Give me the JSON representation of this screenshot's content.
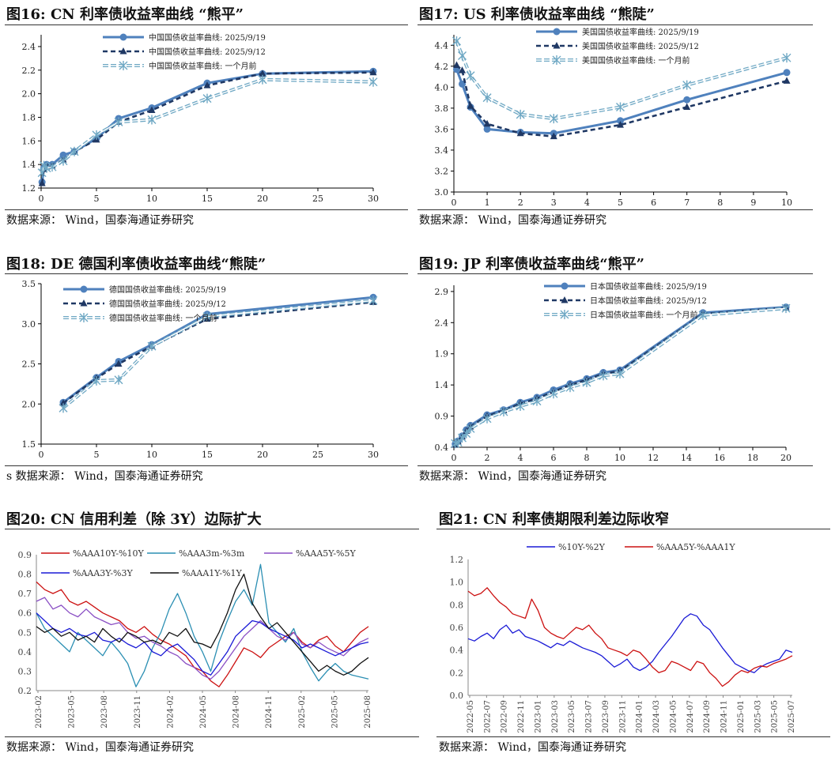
{
  "source_text": "数据来源：  Wind，国泰海通证券研究",
  "source_text_fig18": "s 数据来源：  Wind，国泰海通证券研究",
  "colors": {
    "solid": "#4f81bd",
    "dash": "#1f3864",
    "light": "#6fa8c4",
    "c20_red": "#cc1111",
    "c20_teal": "#2b8fb3",
    "c20_purple": "#8a4fc4",
    "c20_blue": "#1a1ad6",
    "c20_black": "#111111"
  },
  "chart_data": [
    {
      "id": "fig16",
      "type": "line",
      "title": "图16:  CN 利率债收益率曲线 “熊平”",
      "x": [
        0.083,
        0.25,
        0.5,
        1,
        2,
        3,
        5,
        7,
        10,
        15,
        20,
        30
      ],
      "xlim": [
        0,
        30
      ],
      "xticks": [
        0,
        5,
        10,
        15,
        20,
        25,
        30
      ],
      "ylim": [
        1.2,
        2.5
      ],
      "yticks": [
        "1.2",
        "1.4",
        "1.6",
        "1.8",
        "2.0",
        "2.2",
        "2.4"
      ],
      "legend": "top-left",
      "series": [
        {
          "name": "中国国债收益率曲线: 2025/9/19",
          "style": "solid",
          "values": [
            1.25,
            1.37,
            1.4,
            1.4,
            1.48,
            1.51,
            1.62,
            1.79,
            1.88,
            2.09,
            2.17,
            2.19
          ]
        },
        {
          "name": "中国国债收益率曲线: 2025/9/12",
          "style": "dash",
          "values": [
            1.24,
            1.36,
            1.39,
            1.39,
            1.44,
            1.51,
            1.61,
            1.76,
            1.86,
            2.07,
            2.17,
            2.18
          ]
        },
        {
          "name": "中国国债收益率曲线: 一个月前",
          "style": "double",
          "values": [
            1.33,
            1.39,
            1.37,
            1.38,
            1.43,
            1.51,
            1.65,
            1.76,
            1.78,
            1.96,
            2.12,
            2.1
          ]
        }
      ]
    },
    {
      "id": "fig17",
      "type": "line",
      "title": "图17:  US 利率债收益率曲线 “熊陡”",
      "x": [
        0.083,
        0.25,
        0.5,
        1,
        2,
        3,
        5,
        7,
        10
      ],
      "xlim": [
        0,
        10
      ],
      "xticks": [
        0,
        1,
        2,
        3,
        4,
        5,
        6,
        7,
        8,
        9,
        10
      ],
      "ylim": [
        3.0,
        4.5
      ],
      "yticks": [
        "3.0",
        "3.2",
        "3.4",
        "3.6",
        "3.8",
        "4.0",
        "4.2",
        "4.4"
      ],
      "legend": "top-right",
      "series": [
        {
          "name": "美国国债收益率曲线: 2025/9/19",
          "style": "solid",
          "values": [
            4.17,
            4.03,
            3.81,
            3.6,
            3.57,
            3.56,
            3.68,
            3.88,
            4.14
          ]
        },
        {
          "name": "美国国债收益率曲线: 2025/9/12",
          "style": "dash",
          "values": [
            4.21,
            4.16,
            3.82,
            3.65,
            3.56,
            3.53,
            3.64,
            3.81,
            4.06
          ]
        },
        {
          "name": "美国国债收益率曲线: 一个月前",
          "style": "double",
          "values": [
            4.44,
            4.3,
            4.11,
            3.9,
            3.74,
            3.7,
            3.81,
            4.02,
            4.28
          ]
        }
      ]
    },
    {
      "id": "fig18",
      "type": "line",
      "title": "图18:  DE 德国利率债收益率曲线“熊陡”",
      "x": [
        2,
        5,
        7,
        10,
        15,
        30
      ],
      "xlim": [
        0,
        30
      ],
      "xticks": [
        0,
        5,
        10,
        15,
        20,
        25,
        30
      ],
      "ylim": [
        1.5,
        3.5
      ],
      "yticks": [
        "1.5",
        "2.0",
        "2.5",
        "3.0",
        "3.5"
      ],
      "legend": "top-left",
      "series": [
        {
          "name": "德国国债收益率曲线: 2025/9/19",
          "style": "solid",
          "values": [
            2.02,
            2.33,
            2.53,
            2.74,
            3.12,
            3.33
          ]
        },
        {
          "name": "德国国债收益率曲线: 2025/9/12",
          "style": "dash",
          "values": [
            2.01,
            2.32,
            2.5,
            2.72,
            3.06,
            3.27
          ]
        },
        {
          "name": "德国国债收益率曲线: 一个月前",
          "style": "double",
          "values": [
            1.95,
            2.29,
            2.3,
            2.72,
            3.09,
            3.29
          ]
        }
      ]
    },
    {
      "id": "fig19",
      "type": "line",
      "title": "图19:  JP 利率债收益率曲线“熊平”",
      "x": [
        0.083,
        0.25,
        0.5,
        0.75,
        1,
        2,
        3,
        4,
        5,
        6,
        7,
        8,
        9,
        10,
        15,
        20
      ],
      "xlim": [
        0,
        20
      ],
      "xticks": [
        0,
        2,
        4,
        6,
        8,
        10,
        12,
        14,
        16,
        18,
        20
      ],
      "ylim": [
        0.4,
        3.0
      ],
      "yticks": [
        "0.4",
        "0.9",
        "1.4",
        "1.9",
        "2.4",
        "2.9"
      ],
      "legend": "top-center",
      "series": [
        {
          "name": "日本国债收益率曲线: 2025/9/19",
          "style": "solid",
          "values": [
            0.45,
            0.5,
            0.58,
            0.68,
            0.75,
            0.92,
            1.0,
            1.12,
            1.2,
            1.32,
            1.42,
            1.5,
            1.6,
            1.64,
            2.56,
            2.65
          ]
        },
        {
          "name": "日本国债收益率曲线: 2025/9/12",
          "style": "dash",
          "values": [
            0.44,
            0.49,
            0.57,
            0.66,
            0.73,
            0.9,
            0.99,
            1.1,
            1.18,
            1.29,
            1.4,
            1.48,
            1.58,
            1.62,
            2.54,
            2.64
          ]
        },
        {
          "name": "日本国债收益率曲线: 一个月前",
          "style": "double",
          "values": [
            0.46,
            0.48,
            0.55,
            0.62,
            0.7,
            0.86,
            0.97,
            1.06,
            1.14,
            1.26,
            1.36,
            1.44,
            1.55,
            1.58,
            2.52,
            2.63
          ]
        }
      ]
    },
    {
      "id": "fig20",
      "type": "line",
      "title": "图20:  CN 信用利差（除 3Y）边际扩大",
      "ylim": [
        0.2,
        0.9
      ],
      "yticks": [
        "0.2",
        "0.3",
        "0.4",
        "0.5",
        "0.6",
        "0.7",
        "0.8",
        "0.9"
      ],
      "xticks": [
        "2023-02",
        "2023-05",
        "2023-08",
        "2023-11",
        "2024-02",
        "2024-05",
        "2024-08",
        "2024-11",
        "2025-02",
        "2025-05",
        "2025-08"
      ],
      "legend": "top",
      "series": [
        {
          "name": "%AAA10Y-%10Y",
          "color": "#cc1111",
          "values": [
            0.76,
            0.72,
            0.7,
            0.72,
            0.66,
            0.64,
            0.66,
            0.63,
            0.6,
            0.58,
            0.56,
            0.52,
            0.5,
            0.53,
            0.49,
            0.46,
            0.44,
            0.41,
            0.38,
            0.32,
            0.3,
            0.25,
            0.22,
            0.28,
            0.35,
            0.42,
            0.4,
            0.37,
            0.42,
            0.45,
            0.48,
            0.5,
            0.45,
            0.42,
            0.46,
            0.48,
            0.43,
            0.4,
            0.45,
            0.5,
            0.53
          ]
        },
        {
          "name": "%AAA3m-%3m",
          "color": "#2b8fb3",
          "values": [
            0.6,
            0.52,
            0.48,
            0.44,
            0.4,
            0.5,
            0.46,
            0.42,
            0.38,
            0.45,
            0.4,
            0.34,
            0.22,
            0.3,
            0.42,
            0.5,
            0.62,
            0.7,
            0.6,
            0.48,
            0.4,
            0.3,
            0.45,
            0.56,
            0.66,
            0.72,
            0.64,
            0.85,
            0.55,
            0.5,
            0.45,
            0.52,
            0.4,
            0.32,
            0.25,
            0.3,
            0.34,
            0.3,
            0.28,
            0.27,
            0.26
          ]
        },
        {
          "name": "%AAA5Y-%5Y",
          "color": "#8a4fc4",
          "values": [
            0.66,
            0.68,
            0.62,
            0.64,
            0.6,
            0.58,
            0.62,
            0.58,
            0.56,
            0.54,
            0.55,
            0.5,
            0.47,
            0.48,
            0.45,
            0.43,
            0.4,
            0.38,
            0.34,
            0.32,
            0.28,
            0.26,
            0.3,
            0.36,
            0.42,
            0.48,
            0.52,
            0.56,
            0.52,
            0.48,
            0.46,
            0.5,
            0.44,
            0.42,
            0.45,
            0.42,
            0.4,
            0.38,
            0.42,
            0.45,
            0.47
          ]
        },
        {
          "name": "%AAA3Y-%3Y",
          "color": "#1a1ad6",
          "values": [
            0.6,
            0.56,
            0.52,
            0.5,
            0.52,
            0.49,
            0.48,
            0.5,
            0.46,
            0.45,
            0.47,
            0.44,
            0.42,
            0.45,
            0.4,
            0.38,
            0.42,
            0.44,
            0.4,
            0.36,
            0.3,
            0.28,
            0.34,
            0.4,
            0.48,
            0.52,
            0.56,
            0.55,
            0.52,
            0.5,
            0.48,
            0.46,
            0.42,
            0.44,
            0.42,
            0.4,
            0.38,
            0.4,
            0.42,
            0.44,
            0.45
          ]
        },
        {
          "name": "%AAA1Y-%1Y",
          "color": "#111111",
          "values": [
            0.53,
            0.5,
            0.52,
            0.48,
            0.5,
            0.46,
            0.48,
            0.45,
            0.52,
            0.48,
            0.45,
            0.5,
            0.48,
            0.45,
            0.46,
            0.44,
            0.5,
            0.48,
            0.52,
            0.45,
            0.44,
            0.42,
            0.5,
            0.6,
            0.72,
            0.8,
            0.65,
            0.58,
            0.52,
            0.55,
            0.5,
            0.45,
            0.4,
            0.35,
            0.3,
            0.33,
            0.3,
            0.28,
            0.3,
            0.34,
            0.37
          ]
        }
      ]
    },
    {
      "id": "fig21",
      "type": "line",
      "title": "图21:  CN 利率债期限利差边际收窄",
      "ylim": [
        0.0,
        1.2
      ],
      "yticks": [
        "0.0",
        "0.2",
        "0.4",
        "0.6",
        "0.8",
        "1.0",
        "1.2"
      ],
      "xticks": [
        "2022-05",
        "2022-07",
        "2022-09",
        "2022-11",
        "2023-01",
        "2023-03",
        "2023-05",
        "2023-07",
        "2023-09",
        "2023-11",
        "2024-01",
        "2024-03",
        "2024-05",
        "2024-07",
        "2024-09",
        "2024-11",
        "2025-01",
        "2025-03",
        "2025-05",
        "2025-07"
      ],
      "legend": "top",
      "series": [
        {
          "name": "%10Y-%2Y",
          "color": "#1a1ad6",
          "values": [
            0.5,
            0.48,
            0.52,
            0.55,
            0.5,
            0.58,
            0.62,
            0.55,
            0.58,
            0.52,
            0.5,
            0.48,
            0.45,
            0.42,
            0.46,
            0.44,
            0.48,
            0.45,
            0.42,
            0.4,
            0.38,
            0.35,
            0.3,
            0.25,
            0.28,
            0.32,
            0.25,
            0.22,
            0.25,
            0.3,
            0.38,
            0.45,
            0.52,
            0.6,
            0.68,
            0.72,
            0.7,
            0.62,
            0.58,
            0.5,
            0.42,
            0.35,
            0.28,
            0.25,
            0.22,
            0.2,
            0.25,
            0.28,
            0.3,
            0.32,
            0.4,
            0.38
          ]
        },
        {
          "name": "%AAA5Y-%AAA1Y",
          "color": "#cc1111",
          "values": [
            0.92,
            0.88,
            0.9,
            0.95,
            0.88,
            0.82,
            0.78,
            0.72,
            0.7,
            0.68,
            0.85,
            0.75,
            0.6,
            0.55,
            0.52,
            0.5,
            0.55,
            0.6,
            0.58,
            0.62,
            0.55,
            0.5,
            0.42,
            0.4,
            0.38,
            0.35,
            0.4,
            0.38,
            0.32,
            0.25,
            0.2,
            0.22,
            0.3,
            0.28,
            0.25,
            0.22,
            0.3,
            0.28,
            0.2,
            0.15,
            0.08,
            0.12,
            0.18,
            0.22,
            0.2,
            0.24,
            0.26,
            0.25,
            0.28,
            0.3,
            0.32,
            0.35
          ]
        }
      ]
    }
  ]
}
